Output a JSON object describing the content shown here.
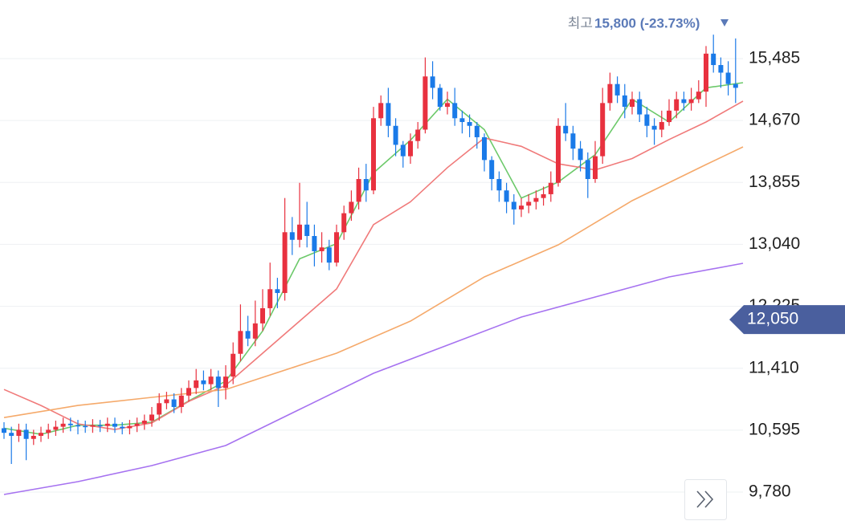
{
  "chart_data": {
    "type": "candlestick",
    "high_marker": {
      "prefix": "최고",
      "text": "15,800 (-23.73%)"
    },
    "ylim": [
      9347,
      16256
    ],
    "yticks": [
      {
        "value": 15485,
        "label": "15,485"
      },
      {
        "value": 14670,
        "label": "14,670"
      },
      {
        "value": 13855,
        "label": "13,855"
      },
      {
        "value": 13040,
        "label": "13,040"
      },
      {
        "value": 12225,
        "label": "12,225"
      },
      {
        "value": 11410,
        "label": "11,410"
      },
      {
        "value": 10595,
        "label": "10,595"
      },
      {
        "value": 9780,
        "label": "9,780"
      }
    ],
    "grid": true,
    "up_color": "#e8313f",
    "down_color": "#1a7ae8",
    "current_price": {
      "value": 12050,
      "label": "12,050",
      "color": "#4a5f9e"
    },
    "open": [
      10620,
      10560,
      10520,
      10600,
      10480,
      10520,
      10560,
      10600,
      10640,
      10680,
      10660,
      10650,
      10640,
      10660,
      10650,
      10680,
      10640,
      10620,
      10650,
      10680,
      10720,
      10800,
      10950,
      11000,
      10900,
      11050,
      11150,
      11250,
      11200,
      11300,
      11150,
      11300,
      11600,
      11900,
      11800,
      12000,
      12200,
      12450,
      12400,
      13200,
      13100,
      13300,
      13150,
      12950,
      13000,
      12800,
      13200,
      13450,
      13600,
      13900,
      13750,
      14700,
      14900,
      14600,
      14350,
      14200,
      14400,
      14550,
      15250,
      15100,
      14850,
      14900,
      14700,
      14650,
      14600,
      14450,
      14150,
      13900,
      13750,
      13600,
      13500,
      13550,
      13600,
      13650,
      13700,
      13850,
      14600,
      14500,
      14300,
      14150,
      13900,
      14200,
      14900,
      15150,
      15000,
      14850,
      14950,
      14750,
      14600,
      14550,
      14650,
      14800,
      14950,
      14900,
      14950,
      15050,
      15550,
      15400,
      15300,
      15150
    ],
    "high": [
      10700,
      10640,
      10680,
      10680,
      10600,
      10640,
      10680,
      10720,
      10760,
      10760,
      10730,
      10720,
      10740,
      10730,
      10760,
      10760,
      10700,
      10730,
      10760,
      10800,
      10900,
      11080,
      11100,
      11080,
      11150,
      11250,
      11400,
      11380,
      11400,
      11380,
      11450,
      11750,
      12250,
      12100,
      12300,
      12450,
      12800,
      12600,
      13650,
      13400,
      13850,
      13600,
      13300,
      13200,
      13100,
      13300,
      13550,
      13750,
      14050,
      14100,
      14850,
      15000,
      15100,
      14700,
      14400,
      14500,
      14650,
      15500,
      15450,
      15150,
      15050,
      15100,
      14800,
      14750,
      14650,
      14500,
      14200,
      14000,
      13850,
      13700,
      13650,
      13700,
      13750,
      13800,
      14000,
      14700,
      14900,
      14600,
      14400,
      14250,
      14400,
      15100,
      15300,
      15250,
      15150,
      15050,
      15050,
      14850,
      14700,
      14800,
      14950,
      15050,
      15050,
      15100,
      15200,
      15650,
      15800,
      15500,
      15450,
      15750
    ],
    "low": [
      10480,
      10150,
      10440,
      10200,
      10400,
      10440,
      10480,
      10520,
      10560,
      10580,
      10540,
      10560,
      10560,
      10570,
      10570,
      10560,
      10540,
      10540,
      10570,
      10600,
      10640,
      10720,
      10870,
      10820,
      10820,
      10970,
      11070,
      11120,
      11120,
      10900,
      11000,
      11200,
      11500,
      11700,
      11700,
      11900,
      12100,
      12200,
      12300,
      12900,
      13000,
      13000,
      12750,
      12800,
      12700,
      12750,
      13100,
      13350,
      13500,
      13600,
      13700,
      14600,
      14450,
      14200,
      14050,
      14100,
      14300,
      14500,
      14950,
      14800,
      14750,
      14600,
      14500,
      14450,
      14300,
      14000,
      13750,
      13600,
      13450,
      13300,
      13400,
      13450,
      13500,
      13550,
      13600,
      13800,
      14400,
      14150,
      14000,
      13650,
      13850,
      14100,
      14800,
      14900,
      14700,
      14750,
      14650,
      14450,
      14350,
      14450,
      14600,
      14700,
      14800,
      14800,
      14900,
      14850,
      15300,
      15100,
      15000,
      14900
    ],
    "close": [
      10560,
      10520,
      10600,
      10480,
      10520,
      10560,
      10600,
      10640,
      10680,
      10660,
      10650,
      10640,
      10660,
      10650,
      10680,
      10640,
      10620,
      10650,
      10680,
      10720,
      10800,
      10950,
      11000,
      10900,
      11050,
      11150,
      11250,
      11200,
      11300,
      11150,
      11300,
      11600,
      11900,
      11800,
      12000,
      12200,
      12450,
      12400,
      13200,
      13100,
      13300,
      13150,
      12950,
      13000,
      12800,
      13200,
      13450,
      13600,
      13900,
      13750,
      14700,
      14900,
      14600,
      14350,
      14200,
      14400,
      14550,
      15250,
      15100,
      14850,
      14900,
      14700,
      14650,
      14600,
      14450,
      14150,
      13900,
      13750,
      13600,
      13500,
      13550,
      13600,
      13650,
      13700,
      13850,
      14600,
      14500,
      14300,
      14150,
      13900,
      14200,
      14900,
      15150,
      15000,
      14850,
      14950,
      14750,
      14600,
      14550,
      14650,
      14800,
      14950,
      14900,
      14950,
      15050,
      15550,
      15400,
      15300,
      15150,
      15100
    ],
    "moving_averages": [
      {
        "color": "#6cc96a",
        "x": [
          0,
          5,
          10,
          15,
          20,
          25,
          30,
          35,
          40,
          45,
          50,
          55,
          60,
          65,
          70,
          75,
          80,
          85,
          90,
          95,
          100
        ],
        "values": [
          10620,
          10540,
          10660,
          10660,
          10700,
          10980,
          11240,
          11900,
          12850,
          13050,
          13980,
          14410,
          14950,
          14550,
          13650,
          13860,
          14220,
          14950,
          14650,
          15100,
          15168
        ]
      },
      {
        "color": "#f07a7a",
        "x": [
          0,
          5,
          10,
          15,
          20,
          25,
          30,
          35,
          40,
          45,
          50,
          55,
          60,
          65,
          70,
          75,
          80,
          85,
          90,
          95,
          100
        ],
        "values": [
          11130,
          10920,
          10678,
          10604,
          10690,
          10974,
          11185,
          11608,
          12030,
          12453,
          13300,
          13600,
          14050,
          14440,
          14330,
          14100,
          14020,
          14170,
          14420,
          14650,
          14925
        ]
      },
      {
        "color": "#f5a96a",
        "x": [
          0,
          10,
          20,
          30,
          35,
          45,
          55,
          65,
          75,
          85,
          95,
          100
        ],
        "values": [
          10760,
          10920,
          11027,
          11130,
          11290,
          11608,
          12030,
          12611,
          13034,
          13615,
          14090,
          14323
        ]
      },
      {
        "color": "#a672f0",
        "x": [
          0,
          10,
          20,
          30,
          40,
          50,
          60,
          70,
          80,
          90,
          100
        ],
        "values": [
          9748,
          9917,
          10129,
          10393,
          10868,
          11344,
          11713,
          12083,
          12347,
          12611,
          12791
        ]
      }
    ]
  }
}
